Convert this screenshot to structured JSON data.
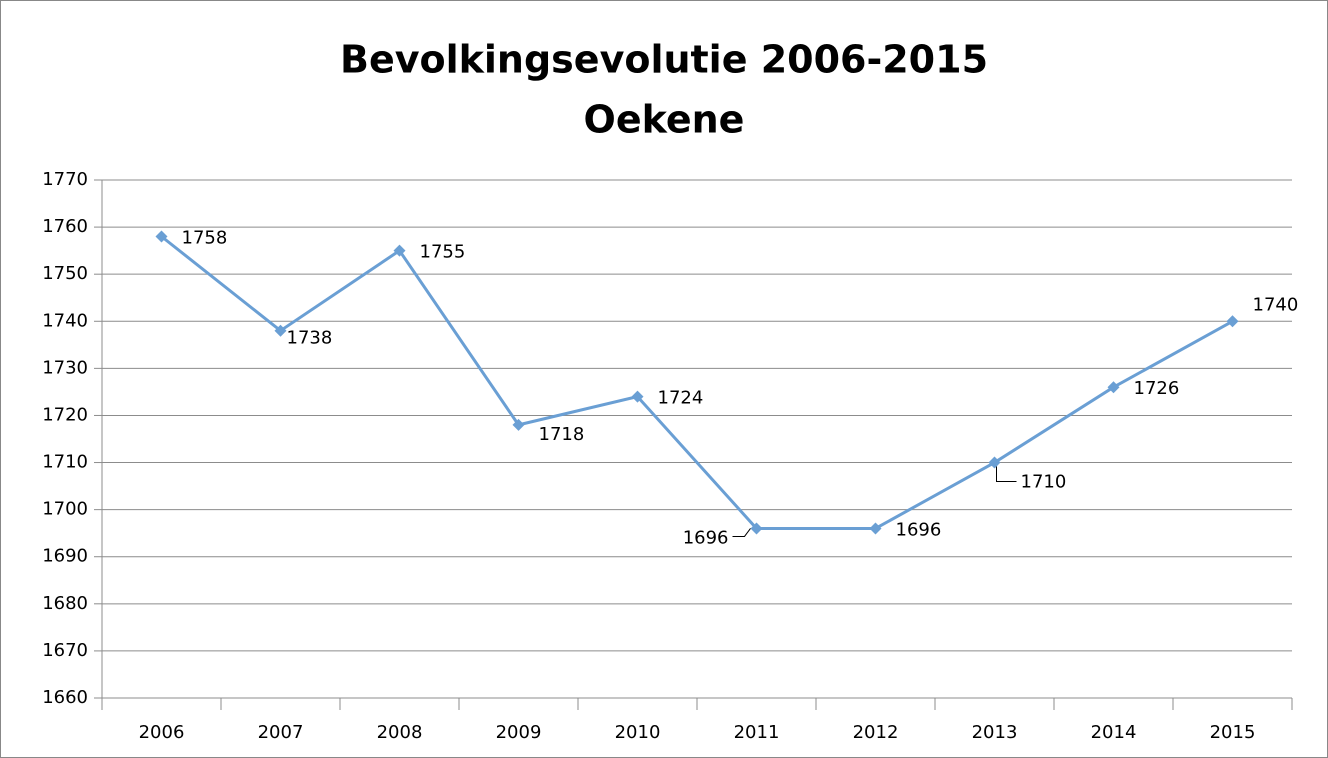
{
  "chart_data": {
    "type": "line",
    "title": [
      "Bevolkingsevolutie 2006-2015",
      "Oekene"
    ],
    "categories": [
      "2006",
      "2007",
      "2008",
      "2009",
      "2010",
      "2011",
      "2012",
      "2013",
      "2014",
      "2015"
    ],
    "values": [
      1758,
      1738,
      1755,
      1718,
      1724,
      1696,
      1696,
      1710,
      1726,
      1740
    ],
    "color": "#6a9fd4",
    "ylim": [
      1660,
      1770
    ],
    "yticks": [
      1660,
      1670,
      1680,
      1690,
      1700,
      1710,
      1720,
      1730,
      1740,
      1750,
      1760,
      1770
    ],
    "grid": true
  }
}
